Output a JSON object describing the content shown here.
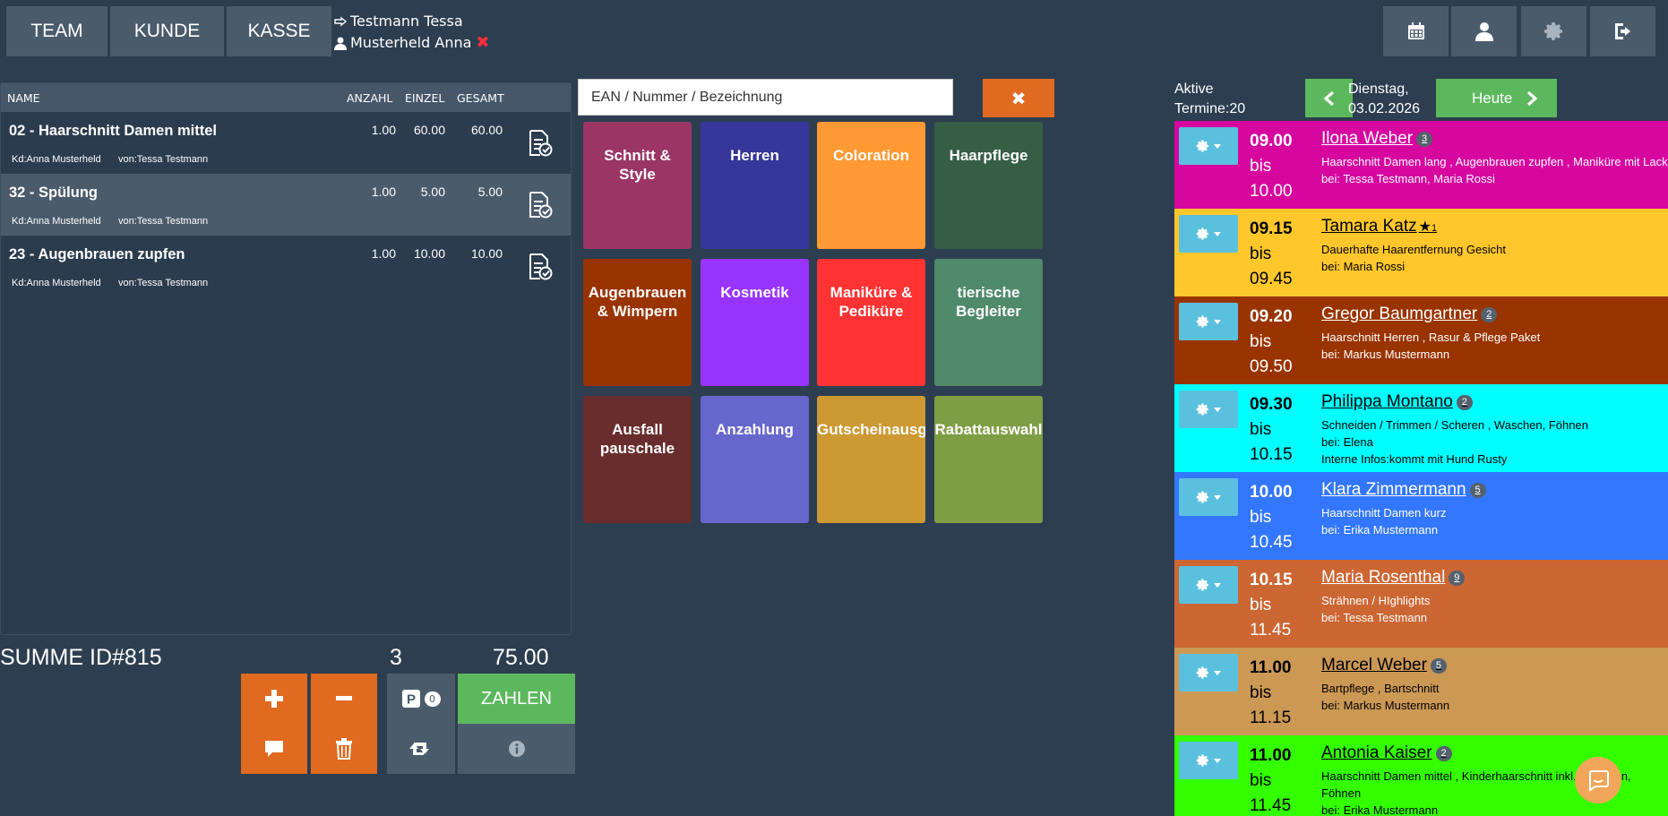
{
  "nav": {
    "team": "TEAM",
    "kunde": "KUNDE",
    "kasse": "KASSE"
  },
  "staff": {
    "employee": "Testmann Tessa",
    "customer": "Musterheld Anna"
  },
  "receipt": {
    "headers": {
      "name": "NAME",
      "anzahl": "ANZAHL",
      "einzel": "EINZEL",
      "gesamt": "GESAMT"
    },
    "rows": [
      {
        "title": "02 - Haarschnitt Damen mittel",
        "anzahl": "1.00",
        "einzel": "60.00",
        "gesamt": "60.00",
        "kd": "Kd:Anna Musterheld",
        "von": "von:Tessa Testmann"
      },
      {
        "title": "32 - Spülung",
        "anzahl": "1.00",
        "einzel": "5.00",
        "gesamt": "5.00",
        "kd": "Kd:Anna Musterheld",
        "von": "von:Tessa Testmann"
      },
      {
        "title": "23 - Augenbrauen zupfen",
        "anzahl": "1.00",
        "einzel": "10.00",
        "gesamt": "10.00",
        "kd": "Kd:Anna Musterheld",
        "von": "von:Tessa Testmann"
      }
    ],
    "sum_label": "SUMME ID#815",
    "sum_count": "3",
    "sum_total": "75.00"
  },
  "actions": {
    "pay_label": "ZAHLEN",
    "parked_count": "0"
  },
  "search": {
    "placeholder": "EAN / Nummer / Bezeichnung"
  },
  "categories": [
    {
      "label": "Schnitt &\nStyle",
      "color": "#9b3566"
    },
    {
      "label": "Herren",
      "color": "#36369b"
    },
    {
      "label": "Coloration",
      "color": "#ff9933"
    },
    {
      "label": "Haarpflege",
      "color": "#355e45"
    },
    {
      "label": "Augenbrauen\n& Wimpern",
      "color": "#993300"
    },
    {
      "label": "Kosmetik",
      "color": "#9933ff"
    },
    {
      "label": "Maniküre &\nPediküre",
      "color": "#ff3333"
    },
    {
      "label": "tierische\nBegleiter",
      "color": "#4f8a6a"
    },
    {
      "label": "Ausfall\npauschale",
      "color": "#6a2d2d"
    },
    {
      "label": "Anzahlung",
      "color": "#6666cc"
    },
    {
      "label": "Gutscheinausgabe",
      "color": "#cc9933"
    },
    {
      "label": "Rabattauswahl",
      "color": "#7f9e44"
    }
  ],
  "appointments_header": {
    "aktive": "Aktive",
    "termine": "Termine:20",
    "weekday": "Dienstag,",
    "date": "03.02.2026",
    "today": "Heute"
  },
  "appointments": [
    {
      "start": "09.00",
      "bis": "bis",
      "end": "10.00",
      "name": "Ilona Weber",
      "badge": "3",
      "services": "Haarschnitt Damen lang , Augenbrauen zupfen , Maniküre mit Lack",
      "staff": "bei: Tessa Testmann, Maria Rossi",
      "info": "",
      "color": "#d6069f",
      "dark": false
    },
    {
      "start": "09.15",
      "bis": "bis",
      "end": "09.45",
      "name": "Tamara Katz",
      "badge": "",
      "star": "★",
      "star_count": "1",
      "services": "Dauerhafte Haarentfernung Gesicht",
      "staff": "bei: Maria Rossi",
      "info": "",
      "color": "#ffc72c",
      "dark": true
    },
    {
      "start": "09.20",
      "bis": "bis",
      "end": "09.50",
      "name": "Gregor Baumgartner",
      "badge": "2",
      "services": "Haarschnitt Herren , Rasur & Pflege Paket",
      "staff": "bei: Markus Mustermann",
      "info": "",
      "color": "#993300",
      "dark": false
    },
    {
      "start": "09.30",
      "bis": "bis",
      "end": "10.15",
      "name": "Philippa Montano",
      "badge": "2",
      "services": "Schneiden / Trimmen / Scheren , Waschen, Föhnen",
      "staff": "bei: Elena",
      "info": "Interne Infos:kommt mit Hund Rusty",
      "color": "#00ffff",
      "dark": true
    },
    {
      "start": "10.00",
      "bis": "bis",
      "end": "10.45",
      "name": "Klara Zimmermann",
      "badge": "5",
      "services": "Haarschnitt Damen kurz",
      "staff": "bei: Erika Mustermann",
      "info": "",
      "color": "#3377ff",
      "dark": false
    },
    {
      "start": "10.15",
      "bis": "bis",
      "end": "11.45",
      "name": "Maria Rosenthal",
      "badge": "9",
      "services": "Strähnen / HIghlights",
      "staff": "bei: Tessa Testmann",
      "info": "",
      "color": "#cc6633",
      "dark": false
    },
    {
      "start": "11.00",
      "bis": "bis",
      "end": "11.15",
      "name": "Marcel Weber",
      "badge": "5",
      "services": "Bartpflege , Bartschnitt",
      "staff": "bei: Markus Mustermann",
      "info": "",
      "color": "#cc9955",
      "dark": true
    },
    {
      "start": "11.00",
      "bis": "bis",
      "end": "11.45",
      "name": "Antonia Kaiser",
      "badge": "2",
      "services": "Haarschnitt Damen mittel , Kinderhaarschnitt inkl. Waschen,",
      "services2": "Föhnen",
      "staff": "bei: Erika Mustermann",
      "info": "",
      "color": "#33ff00",
      "dark": true
    }
  ]
}
